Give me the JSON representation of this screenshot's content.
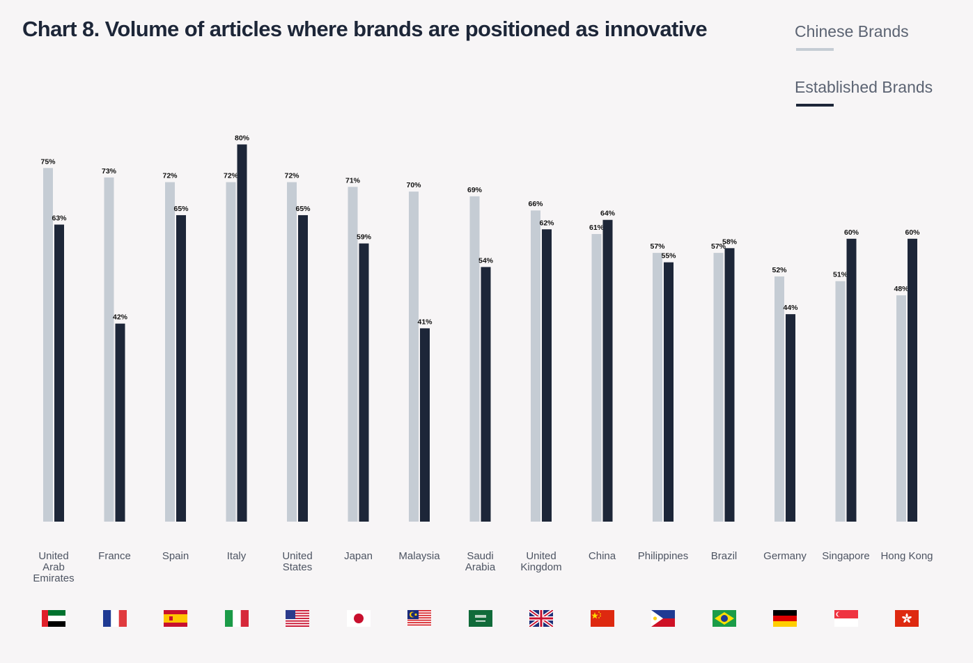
{
  "title": "Chart 8.  Volume of articles where brands are positioned as innovative",
  "legend": [
    {
      "label": "Chinese Brands",
      "color": "#c5ccd4"
    },
    {
      "label": "Established Brands",
      "color": "#1d2638"
    }
  ],
  "chart_data": {
    "type": "bar",
    "title": "Chart 8.  Volume of articles where brands are positioned as innovative",
    "categories": [
      "United Arab Emirates",
      "France",
      "Spain",
      "Italy",
      "United States",
      "Japan",
      "Malaysia",
      "Saudi Arabia",
      "United Kingdom",
      "China",
      "Philippines",
      "Brazil",
      "Germany",
      "Singapore",
      "Hong Kong"
    ],
    "series": [
      {
        "name": "Chinese Brands",
        "color": "#c5ccd4",
        "values": [
          75,
          73,
          72,
          72,
          72,
          71,
          70,
          69,
          66,
          61,
          57,
          57,
          52,
          51,
          48
        ]
      },
      {
        "name": "Established Brands",
        "color": "#1d2638",
        "values": [
          63,
          42,
          65,
          80,
          65,
          59,
          41,
          54,
          62,
          64,
          55,
          58,
          44,
          60,
          60
        ]
      }
    ],
    "value_suffix": "%",
    "ylim": [
      0,
      80
    ],
    "grid": false,
    "legend_position": "top-right",
    "xlabel": "",
    "ylabel": ""
  },
  "categories_display": [
    {
      "lines": [
        "United",
        "Arab",
        "Emirates"
      ],
      "flag": "flag-uae"
    },
    {
      "lines": [
        "France"
      ],
      "flag": "flag-france"
    },
    {
      "lines": [
        "Spain"
      ],
      "flag": "flag-spain"
    },
    {
      "lines": [
        "Italy"
      ],
      "flag": "flag-italy"
    },
    {
      "lines": [
        "United",
        "States"
      ],
      "flag": "flag-usa"
    },
    {
      "lines": [
        "Japan"
      ],
      "flag": "flag-japan"
    },
    {
      "lines": [
        "Malaysia"
      ],
      "flag": "flag-malaysia"
    },
    {
      "lines": [
        "Saudi",
        "Arabia"
      ],
      "flag": "flag-saudi-arabia"
    },
    {
      "lines": [
        "United",
        "Kingdom"
      ],
      "flag": "flag-uk"
    },
    {
      "lines": [
        "China"
      ],
      "flag": "flag-china"
    },
    {
      "lines": [
        "Philippines"
      ],
      "flag": "flag-philippines"
    },
    {
      "lines": [
        "Brazil"
      ],
      "flag": "flag-brazil"
    },
    {
      "lines": [
        "Germany"
      ],
      "flag": "flag-germany"
    },
    {
      "lines": [
        "Singapore"
      ],
      "flag": "flag-singapore"
    },
    {
      "lines": [
        "Hong Kong"
      ],
      "flag": "flag-hong-kong"
    }
  ]
}
